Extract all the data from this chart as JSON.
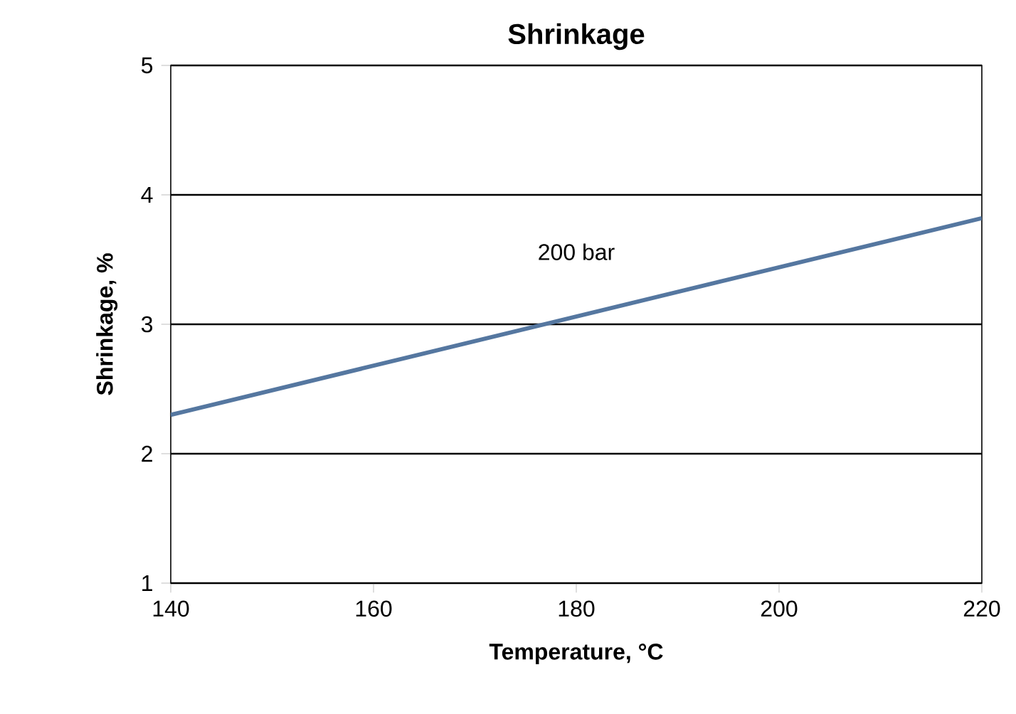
{
  "chart_data": {
    "type": "line",
    "title": "Shrinkage",
    "xlabel": "Temperature, °C",
    "ylabel": "Shrinkage, %",
    "xlim": [
      140,
      220
    ],
    "xticks": [
      140,
      160,
      180,
      200,
      220
    ],
    "ylim": [
      1,
      5
    ],
    "yticks": [
      1,
      2,
      3,
      4,
      5
    ],
    "grid": "y",
    "legend": false,
    "series": [
      {
        "name": "200 bar",
        "color": "#5577a0",
        "x": [
          140,
          180,
          220
        ],
        "values": [
          2.3,
          3.06,
          3.82
        ]
      }
    ]
  }
}
